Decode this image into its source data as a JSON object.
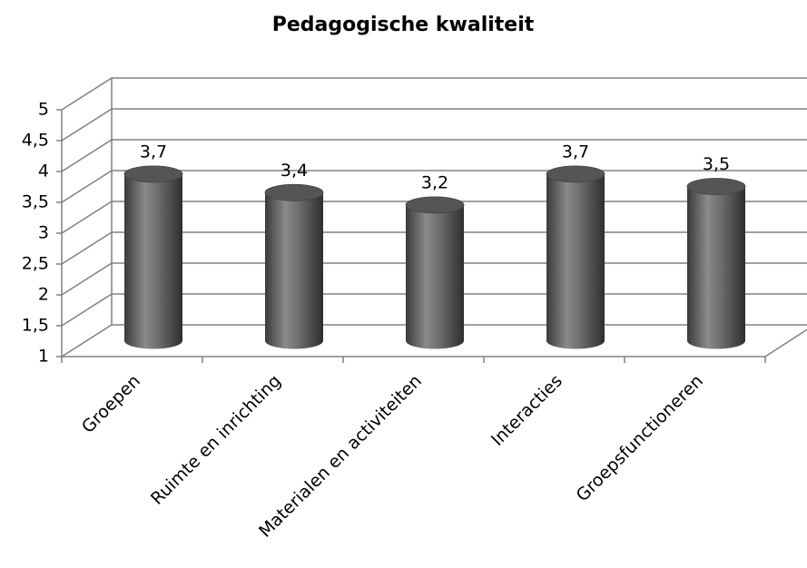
{
  "chart_data": {
    "type": "bar3d",
    "title": "Pedagogische kwaliteit",
    "categories": [
      "Groepen",
      "Ruimte en inrichting",
      "Materialen en activiteiten",
      "Interacties",
      "Groepsfunctioneren"
    ],
    "values": [
      3.7,
      3.4,
      3.2,
      3.7,
      3.5
    ],
    "value_labels": [
      "3,7",
      "3,4",
      "3,2",
      "3,7",
      "3,5"
    ],
    "color": "#555555",
    "ylim": [
      1,
      5
    ],
    "yticks": [
      1,
      {
        "value": 1.5,
        "label": "1,5"
      },
      2,
      {
        "value": 2.5,
        "label": "2,5"
      },
      3,
      {
        "value": 3.5,
        "label": "3,5"
      },
      4,
      {
        "value": 4.5,
        "label": "4,5"
      },
      5
    ],
    "grid": true
  }
}
